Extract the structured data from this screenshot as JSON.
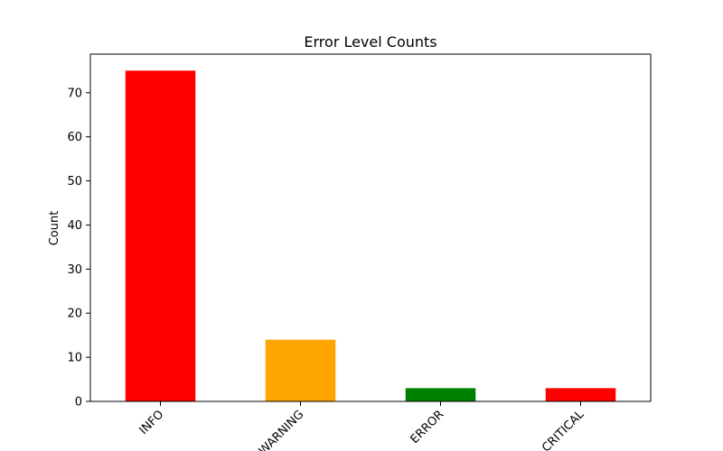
{
  "chart_data": {
    "type": "bar",
    "title": "Error Level Counts",
    "xlabel": "",
    "ylabel": "Count",
    "categories": [
      "INFO",
      "WARNING",
      "ERROR",
      "CRITICAL"
    ],
    "values": [
      75,
      14,
      3,
      3
    ],
    "colors": [
      "#ff0000",
      "#ffa500",
      "#008000",
      "#ff0000"
    ],
    "ylim": [
      0,
      78.75
    ],
    "yticks": [
      0,
      10,
      20,
      30,
      40,
      50,
      60,
      70
    ],
    "grid": false,
    "legend": "none"
  }
}
